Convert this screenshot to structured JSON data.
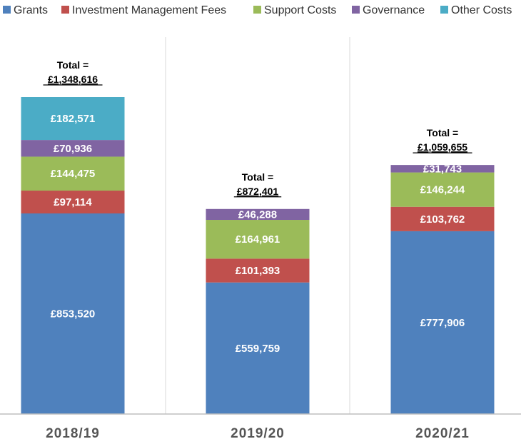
{
  "chart_data": {
    "type": "bar",
    "stacked": true,
    "title": "",
    "xlabel": "",
    "ylabel": "",
    "ylim": [
      0,
      1348616
    ],
    "legend_position": "top",
    "categories": [
      "2018/19",
      "2019/20",
      "2020/21"
    ],
    "series": [
      {
        "name": "Grants",
        "color": "#4f81bd",
        "values": [
          853520,
          559759,
          777906
        ],
        "labels": [
          "£853,520",
          "£559,759",
          "£777,906"
        ]
      },
      {
        "name": "Investment Management Fees",
        "color": "#c0504d",
        "values": [
          97114,
          101393,
          103762
        ],
        "labels": [
          "£97,114",
          "£101,393",
          "£103,762"
        ]
      },
      {
        "name": "Support Costs",
        "color": "#9bbb59",
        "values": [
          144475,
          164961,
          146244
        ],
        "labels": [
          "£144,475",
          "£164,961",
          "£146,244"
        ]
      },
      {
        "name": "Governance",
        "color": "#8064a2",
        "values": [
          70936,
          46288,
          31743
        ],
        "labels": [
          "£70,936",
          "£46,288",
          "£31,743"
        ]
      },
      {
        "name": "Other Costs",
        "color": "#4bacc6",
        "values": [
          182571,
          0,
          0
        ],
        "labels": [
          "£182,571",
          "",
          ""
        ]
      }
    ],
    "total_prefix": "Total =",
    "totals": [
      "£1,348,616",
      "£872,401",
      "£1,059,655"
    ]
  }
}
